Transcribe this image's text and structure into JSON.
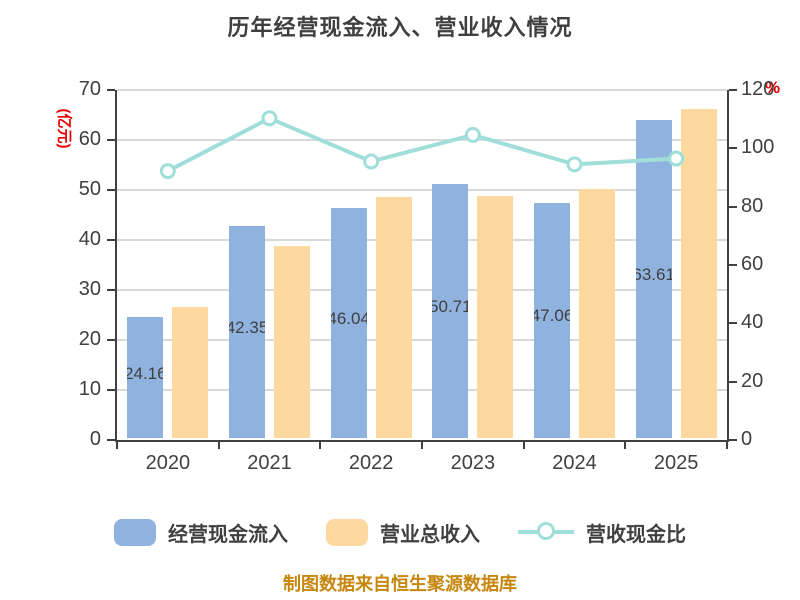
{
  "title": "历年经营现金流入、营业收入情况",
  "footer": "制图数据来自恒生聚源数据库",
  "colors": {
    "cash_inflow_bar": "#8fb2de",
    "revenue_bar": "#fdd9a0",
    "ratio_line": "#a0dfd9",
    "ratio_marker_fill": "#ffffff",
    "axis_text": "#404040",
    "axis_unit_red": "#e60000",
    "footer_gold": "#c6870f",
    "gridline": "#d9d9d9"
  },
  "chart_data": {
    "type": "bar",
    "subtype": "grouped-bars-with-line",
    "title": "历年经营现金流入、营业收入情况",
    "categories": [
      "2020",
      "2021",
      "2022",
      "2023",
      "2024",
      "2025"
    ],
    "series": [
      {
        "name": "经营现金流入",
        "type": "bar",
        "axis": "left",
        "color": "#8fb2de",
        "values": [
          24.16,
          42.35,
          46.04,
          50.71,
          47.06,
          63.61
        ],
        "data_labels_visible": true
      },
      {
        "name": "营业总收入",
        "type": "bar",
        "axis": "left",
        "color": "#fdd9a0",
        "values": [
          26.2,
          38.4,
          48.2,
          48.5,
          49.8,
          65.9
        ],
        "data_labels_visible": false
      },
      {
        "name": "营收现金比",
        "type": "line",
        "axis": "right",
        "color": "#a0dfd9",
        "values": [
          92.2,
          110.3,
          95.5,
          104.6,
          94.5,
          96.5
        ],
        "data_labels_visible": false
      }
    ],
    "left_axis": {
      "unit": "(亿元)",
      "min": 0,
      "max": 70,
      "step": 10,
      "ticks": [
        0,
        10,
        20,
        30,
        40,
        50,
        60,
        70
      ]
    },
    "right_axis": {
      "unit": "%",
      "min": 0,
      "max": 120,
      "step": 20,
      "ticks": [
        0,
        20,
        40,
        60,
        80,
        100,
        120
      ]
    },
    "grid": true,
    "legend_position": "bottom",
    "footnote": "制图数据来自恒生聚源数据库"
  }
}
